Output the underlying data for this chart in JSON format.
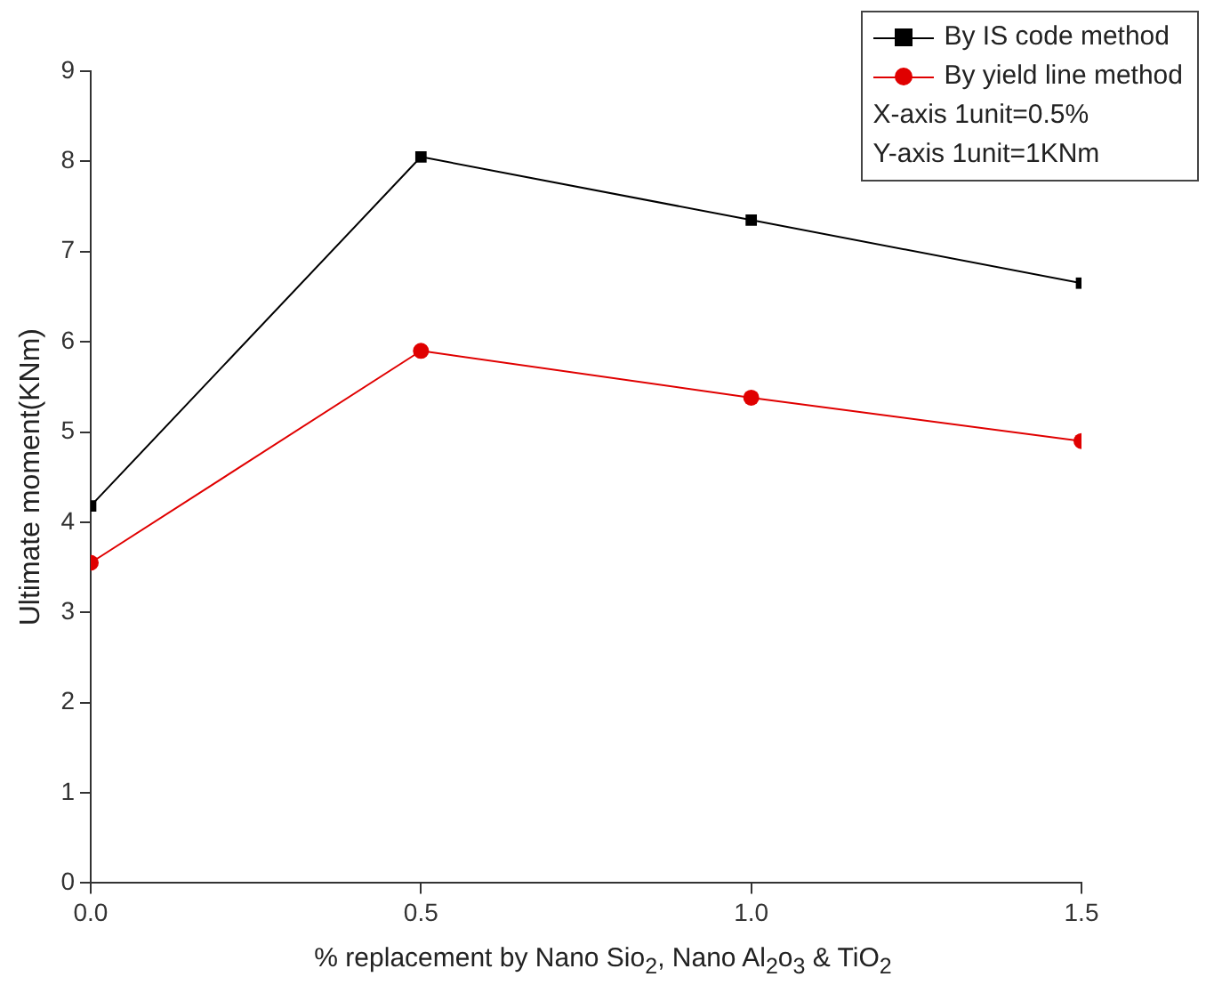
{
  "chart_data": {
    "type": "line",
    "xlabel": "% replacement by Nano Sio$_{2}$,  Nano Al$_{2}$o$_{3}$ & TiO$_{2}$",
    "ylabel": "Ultimate moment(KNm)",
    "x": [
      0,
      0.5,
      1.0,
      1.5
    ],
    "series": [
      {
        "name": "By IS code method",
        "color": "#000000",
        "marker": "square",
        "values": [
          4.18,
          8.05,
          7.35,
          6.65
        ]
      },
      {
        "name": "By yield line method",
        "color": "#e00000",
        "marker": "circle",
        "values": [
          3.55,
          5.9,
          5.38,
          4.9
        ]
      }
    ],
    "xlim": [
      0,
      1.5
    ],
    "xticks": [
      {
        "value": 0,
        "label": "0.0"
      },
      0.5,
      {
        "value": 1,
        "label": "1.0"
      },
      1.5
    ],
    "ylim": [
      0,
      9
    ],
    "yticks": [
      0,
      1,
      2,
      3,
      4,
      5,
      6,
      7,
      8,
      9
    ],
    "grid": false,
    "legend": "top right",
    "line_style": "solid",
    "annotations": [
      "X-axis 1unit=0.5%",
      "Y-axis 1unit=1KNm"
    ]
  }
}
